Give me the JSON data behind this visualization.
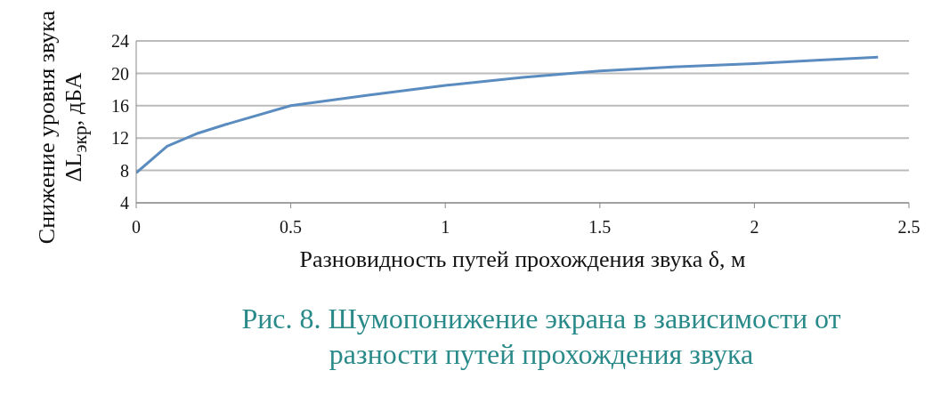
{
  "chart_data": {
    "type": "line",
    "xlabel": "Разновидность путей прохождения звука δ,  м",
    "ylabel": "Снижение уровня звука ΔL$_{экр}$,  дБА",
    "annotations": [
      "Рис. 8. Шумопонижение экрана в зависимости от разности путей прохождения звука"
    ],
    "x": [
      0,
      0.1,
      0.2,
      0.3,
      0.5,
      0.75,
      1,
      1.25,
      1.5,
      1.75,
      2,
      2.2,
      2.4
    ],
    "series": [
      {
        "color": "#5b8cc0",
        "values": [
          7.7,
          11,
          12.6,
          13.8,
          16,
          17.3,
          18.5,
          19.5,
          20.3,
          20.8,
          21.2,
          21.6,
          22
        ]
      }
    ],
    "xlim": [
      0,
      2.5
    ],
    "xticks": [
      0,
      0.5,
      1,
      1.5,
      2,
      2.5
    ],
    "ylim": [
      4,
      24
    ],
    "yticks": [
      4,
      8,
      12,
      16,
      20,
      24
    ],
    "grid": "y",
    "legend": false,
    "marker": "none",
    "line_style": "solid"
  }
}
